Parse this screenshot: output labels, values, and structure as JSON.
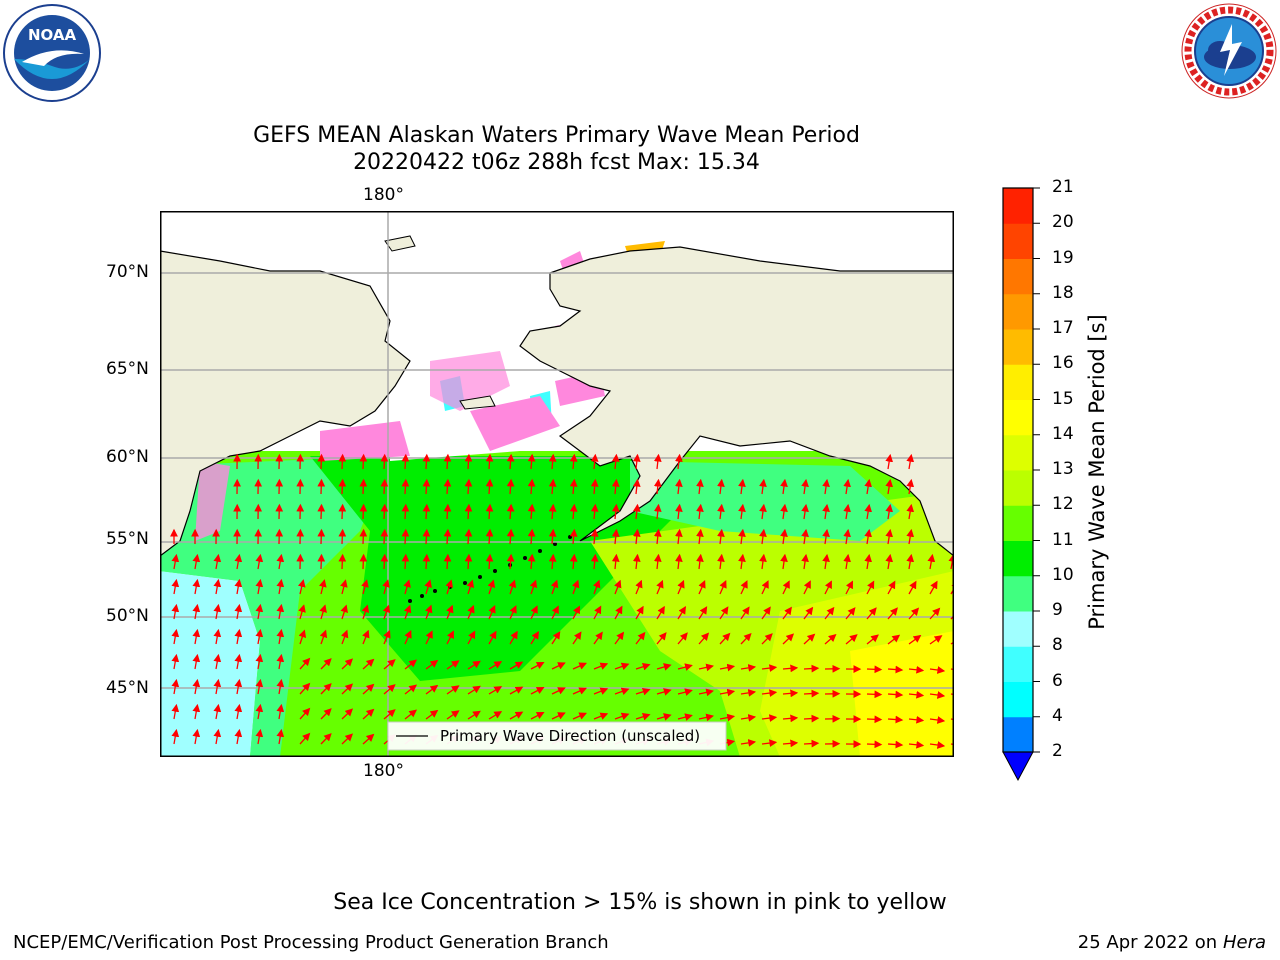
{
  "title_line1": "GEFS MEAN Alaskan Waters Primary Wave Mean Period",
  "title_line2": "20220422 t06z 288h fcst   Max: 15.34",
  "logos": {
    "noaa": {
      "text": "NOAA",
      "ring_text": "NATIONAL OCEANIC AND ATMOSPHERIC ADMINISTRATION · U.S. DEPARTMENT OF COMMERCE"
    },
    "nws": {
      "ring_text": "NATIONAL WEATHER SERVICE"
    }
  },
  "map": {
    "lon_labels": [
      "180°",
      "180°"
    ],
    "lat_labels": [
      "70°N",
      "65°N",
      "60°N",
      "55°N",
      "50°N",
      "45°N"
    ],
    "legend_label": "Primary Wave Direction (unscaled)",
    "land_color": "#efefdb",
    "arrow_color": "#ff0000"
  },
  "colorbar": {
    "label": "Primary Wave Mean Period [s]",
    "ticks": [
      "2",
      "4",
      "6",
      "8",
      "9",
      "10",
      "11",
      "12",
      "13",
      "14",
      "15",
      "16",
      "17",
      "18",
      "19",
      "20",
      "21"
    ],
    "colors": [
      "#0080ff",
      "#00ffff",
      "#40ffff",
      "#a0ffff",
      "#40ff80",
      "#00ee00",
      "#66ff00",
      "#bbff00",
      "#ddff00",
      "#ffff00",
      "#ffee00",
      "#ffbb00",
      "#ff9900",
      "#ff7700",
      "#ff4400",
      "#ff2200",
      "#ff0000"
    ],
    "extend_color": "#0000ff"
  },
  "note": "Sea Ice Concentration > 15% is shown in pink to yellow",
  "footer_left": "NCEP/EMC/Verification Post Processing Product Generation Branch",
  "footer_right_date": "25 Apr 2022 on ",
  "footer_right_host": "Hera"
}
